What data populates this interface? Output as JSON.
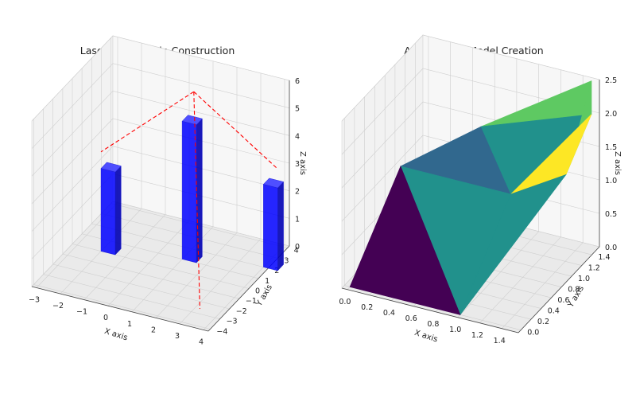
{
  "chart_data": [
    {
      "type": "3d-bar",
      "title": "Laser Scanning in Construction",
      "xlabel": "X axis",
      "ylabel": "Y axis",
      "zlabel": "Z axis",
      "xlim": [
        -3.2,
        4.2
      ],
      "ylim": [
        -4.2,
        4.2
      ],
      "zlim": [
        0,
        6
      ],
      "xticks": [
        -3,
        -2,
        -1,
        0,
        1,
        2,
        3,
        4
      ],
      "yticks": [
        -4,
        -3,
        -2,
        -1,
        0,
        1,
        2,
        3,
        4
      ],
      "zticks": [
        0,
        1,
        2,
        3,
        4,
        5,
        6
      ],
      "grid": true,
      "bar_color": "#0000ff",
      "line_color": "#ff0000",
      "bars": [
        {
          "x": -2.0,
          "y": 0.0,
          "dx": 0.6,
          "dy": 0.6,
          "height": 3.0
        },
        {
          "x": 1.0,
          "y": 1.0,
          "dx": 0.6,
          "dy": 0.6,
          "height": 5.0
        },
        {
          "x": 4.0,
          "y": 2.0,
          "dx": 0.6,
          "dy": 0.6,
          "height": 3.0
        }
      ],
      "laser_lines": [
        {
          "from": [
            0.8,
            2.7,
            5.4
          ],
          "to": [
            -2.0,
            0.0,
            3.6
          ]
        },
        {
          "from": [
            0.8,
            2.7,
            5.4
          ],
          "to": [
            3.2,
            -2.6,
            0.0
          ]
        },
        {
          "from": [
            0.8,
            2.7,
            5.4
          ],
          "to": [
            4.0,
            3.5,
            3.0
          ]
        }
      ]
    },
    {
      "type": "surface",
      "title": "Accurate 3D Model Creation",
      "xlabel": "X axis",
      "ylabel": "Y axis",
      "zlabel": "Z axis",
      "xlim": [
        -0.05,
        1.55
      ],
      "ylim": [
        -0.05,
        1.55
      ],
      "zlim": [
        0,
        2.5
      ],
      "xticks": [
        "0.0",
        "0.2",
        "0.4",
        "0.6",
        "0.8",
        "1.0",
        "1.2",
        "1.4"
      ],
      "yticks": [
        "0.0",
        "0.2",
        "0.4",
        "0.6",
        "0.8",
        "1.0",
        "1.2",
        "1.4"
      ],
      "zticks": [
        "0.0",
        "0.5",
        "1.0",
        "1.5",
        "2.0",
        "2.5"
      ],
      "grid": true,
      "colormap": "viridis",
      "triangles": [
        {
          "color": "#440154",
          "pts": [
            [
              0,
              0,
              0
            ],
            [
              1,
              0,
              0
            ],
            [
              0,
              1,
              1
            ]
          ]
        },
        {
          "color": "#21918c",
          "pts": [
            [
              1,
              0,
              0
            ],
            [
              0,
              1,
              1
            ],
            [
              1,
              1,
              1
            ]
          ]
        },
        {
          "color": "#31688e",
          "pts": [
            [
              0,
              1,
              1
            ],
            [
              1,
              1,
              1
            ],
            [
              0.5,
              1.5,
              1.4
            ]
          ]
        },
        {
          "color": "#21918c",
          "pts": [
            [
              1,
              1,
              1
            ],
            [
              0.5,
              1.5,
              1.4
            ],
            [
              1.5,
              1.5,
              2
            ]
          ]
        },
        {
          "color": "#21918c",
          "pts": [
            [
              1,
              0,
              0
            ],
            [
              1,
              1,
              1
            ],
            [
              1.5,
              1.0,
              1.5
            ]
          ]
        },
        {
          "color": "#fde725",
          "pts": [
            [
              1,
              1,
              1
            ],
            [
              1.5,
              1.0,
              1.5
            ],
            [
              1.5,
              1.5,
              2
            ]
          ]
        },
        {
          "color": "#5ec962",
          "pts": [
            [
              1.5,
              1.5,
              2
            ],
            [
              1.5,
              1.0,
              1.5
            ],
            [
              1.5,
              1.5,
              2.5
            ]
          ]
        },
        {
          "color": "#5ec962",
          "pts": [
            [
              0.5,
              1.5,
              1.4
            ],
            [
              1.5,
              1.5,
              2
            ],
            [
              1.5,
              1.5,
              2.5
            ]
          ]
        }
      ]
    }
  ]
}
